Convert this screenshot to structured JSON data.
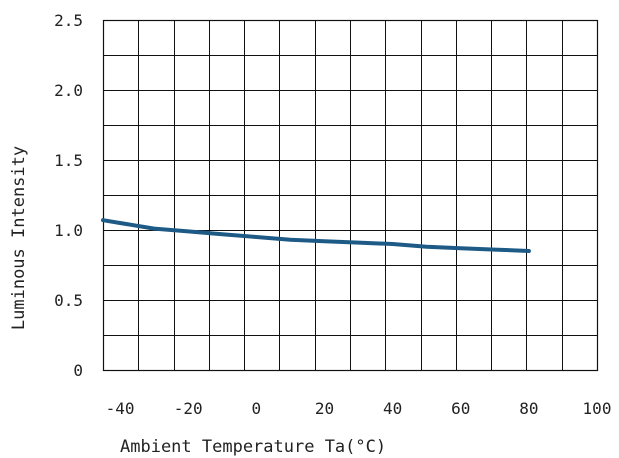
{
  "chart_data": {
    "type": "line",
    "title": "",
    "xlabel": "Ambient Temperature Ta(°C)",
    "ylabel": "Luminous Intensity",
    "xlim": [
      -45,
      100
    ],
    "ylim": [
      0,
      2.5
    ],
    "x_ticks": [
      "-40",
      "-20",
      "0",
      "20",
      "40",
      "60",
      "80",
      "100"
    ],
    "y_ticks": [
      "0",
      "0.5",
      "1.0",
      "1.5",
      "2.0",
      "2.5"
    ],
    "grid": true,
    "series": [
      {
        "color": "#1d5a86",
        "x": [
          -45,
          -40,
          -30,
          -20,
          -10,
          0,
          10,
          20,
          30,
          40,
          50,
          60,
          70,
          80
        ],
        "y": [
          1.07,
          1.05,
          1.01,
          0.99,
          0.97,
          0.95,
          0.93,
          0.92,
          0.91,
          0.9,
          0.88,
          0.87,
          0.86,
          0.85
        ]
      }
    ]
  }
}
